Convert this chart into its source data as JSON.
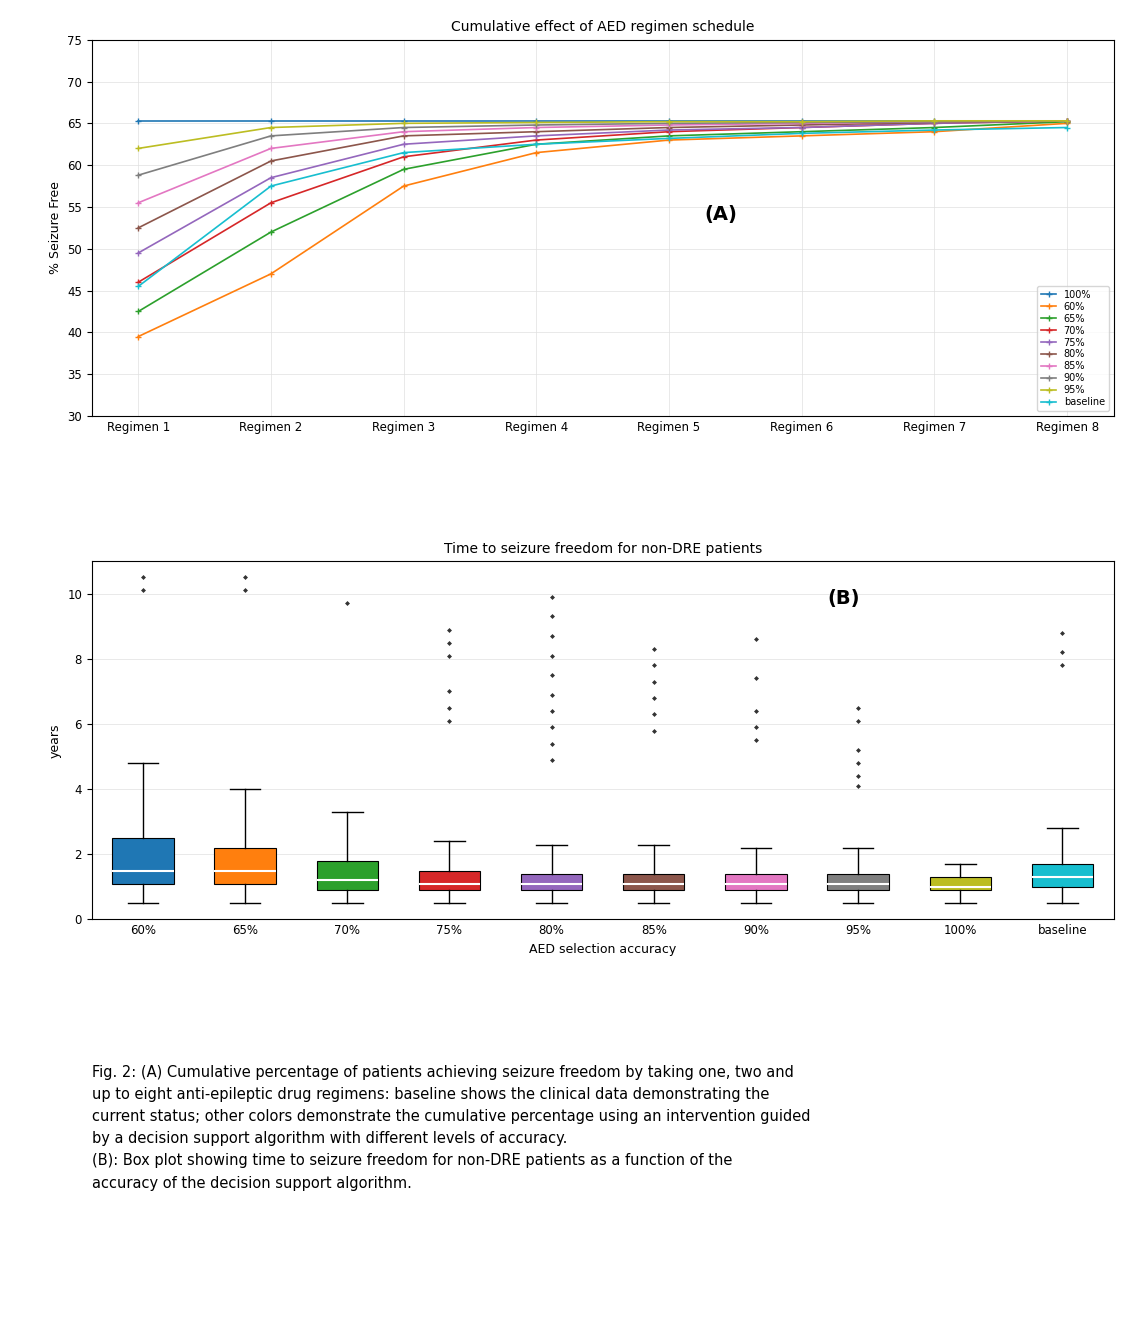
{
  "title_a": "Cumulative effect of AED regimen schedule",
  "title_b": "Time to seizure freedom for non-DRE patients",
  "ylabel_a": "% Seizure Free",
  "ylabel_b": "years",
  "xlabel_b": "AED selection accuracy",
  "regimens": [
    "Regimen 1",
    "Regimen 2",
    "Regimen 3",
    "Regimen 4",
    "Regimen 5",
    "Regimen 6",
    "Regimen 7",
    "Regimen 8"
  ],
  "ylim_a": [
    30,
    75
  ],
  "yticks_a": [
    30,
    35,
    40,
    45,
    50,
    55,
    60,
    65,
    70,
    75
  ],
  "line_series": {
    "100%": {
      "color": "#1f77b4",
      "values": [
        65.3,
        65.3,
        65.3,
        65.3,
        65.3,
        65.3,
        65.3,
        65.3
      ]
    },
    "60%": {
      "color": "#ff7f0e",
      "values": [
        39.5,
        47.0,
        57.5,
        61.5,
        63.0,
        63.5,
        64.0,
        65.0
      ]
    },
    "65%": {
      "color": "#2ca02c",
      "values": [
        42.5,
        52.0,
        59.5,
        62.5,
        63.5,
        64.0,
        64.5,
        65.2
      ]
    },
    "70%": {
      "color": "#d62728",
      "values": [
        46.0,
        55.5,
        61.0,
        63.0,
        64.0,
        64.5,
        65.0,
        65.3
      ]
    },
    "75%": {
      "color": "#9467bd",
      "values": [
        49.5,
        58.5,
        62.5,
        63.5,
        64.2,
        64.5,
        65.0,
        65.3
      ]
    },
    "80%": {
      "color": "#8c564b",
      "values": [
        52.5,
        60.5,
        63.5,
        64.0,
        64.5,
        64.8,
        65.1,
        65.3
      ]
    },
    "85%": {
      "color": "#e377c2",
      "values": [
        55.5,
        62.0,
        64.0,
        64.5,
        64.8,
        65.0,
        65.2,
        65.3
      ]
    },
    "90%": {
      "color": "#7f7f7f",
      "values": [
        58.8,
        63.5,
        64.5,
        64.8,
        65.0,
        65.1,
        65.2,
        65.3
      ]
    },
    "95%": {
      "color": "#bcbd22",
      "values": [
        62.0,
        64.5,
        65.0,
        65.1,
        65.2,
        65.2,
        65.3,
        65.3
      ]
    },
    "baseline": {
      "color": "#17becf",
      "values": [
        45.5,
        57.5,
        61.5,
        62.5,
        63.2,
        63.8,
        64.2,
        64.5
      ]
    }
  },
  "legend_order": [
    "100%",
    "60%",
    "65%",
    "70%",
    "75%",
    "80%",
    "85%",
    "90%",
    "95%",
    "baseline"
  ],
  "box_categories": [
    "60%",
    "65%",
    "70%",
    "75%",
    "80%",
    "85%",
    "90%",
    "95%",
    "100%",
    "baseline"
  ],
  "box_colors": [
    "#1f77b4",
    "#ff7f0e",
    "#2ca02c",
    "#d62728",
    "#9467bd",
    "#8c564b",
    "#e377c2",
    "#7f7f7f",
    "#bcbd22",
    "#17becf"
  ],
  "box_data": {
    "60%": {
      "whislo": 0.5,
      "q1": 1.1,
      "med": 1.5,
      "q3": 2.5,
      "whishi": 4.8,
      "fliers_hi": [
        10.5,
        10.1
      ]
    },
    "65%": {
      "whislo": 0.5,
      "q1": 1.1,
      "med": 1.5,
      "q3": 2.2,
      "whishi": 4.0,
      "fliers_hi": [
        10.5,
        10.1
      ]
    },
    "70%": {
      "whislo": 0.5,
      "q1": 0.9,
      "med": 1.2,
      "q3": 1.8,
      "whishi": 3.3,
      "fliers_hi": [
        9.7
      ]
    },
    "75%": {
      "whislo": 0.5,
      "q1": 0.9,
      "med": 1.1,
      "q3": 1.5,
      "whishi": 2.4,
      "fliers_hi": [
        8.9,
        8.5,
        8.1,
        7.0,
        6.5,
        6.1
      ]
    },
    "80%": {
      "whislo": 0.5,
      "q1": 0.9,
      "med": 1.1,
      "q3": 1.4,
      "whishi": 2.3,
      "fliers_hi": [
        9.9,
        9.3,
        8.7,
        8.1,
        7.5,
        6.9,
        6.4,
        5.9,
        5.4,
        4.9
      ]
    },
    "85%": {
      "whislo": 0.5,
      "q1": 0.9,
      "med": 1.1,
      "q3": 1.4,
      "whishi": 2.3,
      "fliers_hi": [
        8.3,
        7.8,
        7.3,
        6.8,
        6.3,
        5.8
      ]
    },
    "90%": {
      "whislo": 0.5,
      "q1": 0.9,
      "med": 1.1,
      "q3": 1.4,
      "whishi": 2.2,
      "fliers_hi": [
        8.6,
        7.4,
        6.4,
        5.9,
        5.5
      ]
    },
    "95%": {
      "whislo": 0.5,
      "q1": 0.9,
      "med": 1.1,
      "q3": 1.4,
      "whishi": 2.2,
      "fliers_hi": [
        6.5,
        6.1,
        5.2,
        4.8,
        4.4,
        4.1
      ]
    },
    "100%": {
      "whislo": 0.5,
      "q1": 0.9,
      "med": 1.0,
      "q3": 1.3,
      "whishi": 1.7,
      "fliers_hi": []
    },
    "baseline": {
      "whislo": 0.5,
      "q1": 1.0,
      "med": 1.3,
      "q3": 1.7,
      "whishi": 2.8,
      "fliers_hi": [
        8.8,
        8.2,
        7.8
      ]
    }
  },
  "caption_lines": [
    "Fig. 2: (A) Cumulative percentage of patients achieving seizure freedom by taking one, two and",
    "up to eight anti-epileptic drug regimens: baseline shows the clinical data demonstrating the",
    "current status; other colors demonstrate the cumulative percentage using an intervention guided",
    "by a decision support algorithm with different levels of accuracy.",
    "(B): Box plot showing time to seizure freedom for non-DRE patients as a function of the",
    "accuracy of the decision support algorithm."
  ]
}
